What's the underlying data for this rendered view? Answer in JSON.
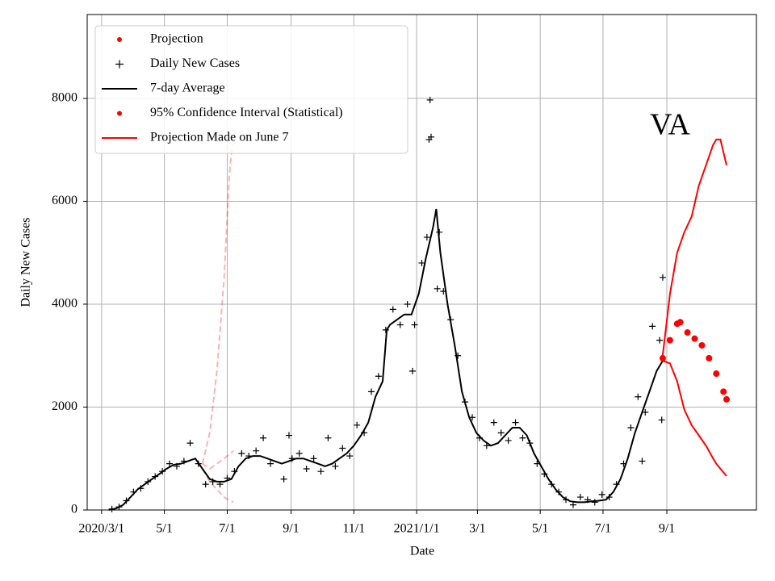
{
  "chart_data": {
    "type": "line",
    "xlabel": "Date",
    "ylabel": "Daily New Cases",
    "annotation": "VA",
    "grid": true,
    "legend": "upper left",
    "xlim": [
      "2020-02-16",
      "2021-11-27"
    ],
    "ylim": [
      0,
      9630
    ],
    "yticks": [
      0,
      2000,
      4000,
      6000,
      8000
    ],
    "xticks": [
      {
        "value": "2020-03-01",
        "label": "2020/3/1"
      },
      {
        "value": "2020-05-01",
        "label": "5/1"
      },
      {
        "value": "2020-07-01",
        "label": "7/1"
      },
      {
        "value": "2020-09-01",
        "label": "9/1"
      },
      {
        "value": "2020-11-01",
        "label": "11/1"
      },
      {
        "value": "2021-01-01",
        "label": "2021/1/1"
      },
      {
        "value": "2021-03-01",
        "label": "3/1"
      },
      {
        "value": "2021-05-01",
        "label": "5/1"
      },
      {
        "value": "2021-07-01",
        "label": "7/1"
      },
      {
        "value": "2021-09-01",
        "label": "9/1"
      }
    ],
    "series": [
      {
        "name": "Projection",
        "style": "dots",
        "color": "#ff0000",
        "x": [
          "2021-08-28",
          "2021-09-04",
          "2021-09-11",
          "2021-09-14",
          "2021-09-21",
          "2021-09-28",
          "2021-10-05",
          "2021-10-12",
          "2021-10-19",
          "2021-10-26",
          "2021-10-29"
        ],
        "values": [
          2950,
          3300,
          3620,
          3650,
          3450,
          3330,
          3200,
          2950,
          2650,
          2300,
          2150
        ]
      },
      {
        "name": "Daily New Cases",
        "style": "plus",
        "color": "#000000",
        "x": [
          "2020-03-11",
          "2020-03-18",
          "2020-03-25",
          "2020-04-01",
          "2020-04-08",
          "2020-04-15",
          "2020-04-22",
          "2020-04-29",
          "2020-05-06",
          "2020-05-13",
          "2020-05-20",
          "2020-05-26",
          "2020-06-03",
          "2020-06-10",
          "2020-06-17",
          "2020-06-24",
          "2020-07-01",
          "2020-07-08",
          "2020-07-15",
          "2020-07-22",
          "2020-07-29",
          "2020-08-05",
          "2020-08-12",
          "2020-08-25",
          "2020-08-30",
          "2020-09-02",
          "2020-09-09",
          "2020-09-16",
          "2020-09-23",
          "2020-09-30",
          "2020-10-07",
          "2020-10-14",
          "2020-10-21",
          "2020-10-28",
          "2020-11-04",
          "2020-11-11",
          "2020-11-18",
          "2020-11-25",
          "2020-12-02",
          "2020-12-09",
          "2020-12-16",
          "2020-12-23",
          "2020-12-28",
          "2020-12-30",
          "2021-01-06",
          "2021-01-11",
          "2021-01-13",
          "2021-01-14",
          "2021-01-15",
          "2021-01-21",
          "2021-01-23",
          "2021-01-27",
          "2021-02-03",
          "2021-02-10",
          "2021-02-17",
          "2021-02-24",
          "2021-03-03",
          "2021-03-10",
          "2021-03-17",
          "2021-03-24",
          "2021-03-31",
          "2021-04-07",
          "2021-04-14",
          "2021-04-21",
          "2021-04-28",
          "2021-05-05",
          "2021-05-12",
          "2021-05-19",
          "2021-05-26",
          "2021-06-02",
          "2021-06-09",
          "2021-06-16",
          "2021-06-23",
          "2021-06-30",
          "2021-07-07",
          "2021-07-14",
          "2021-07-21",
          "2021-07-28",
          "2021-08-04",
          "2021-08-08",
          "2021-08-11",
          "2021-08-18",
          "2021-08-25",
          "2021-08-27",
          "2021-08-28"
        ],
        "values": [
          20,
          60,
          180,
          350,
          420,
          550,
          650,
          750,
          900,
          850,
          950,
          1300,
          900,
          500,
          550,
          500,
          620,
          750,
          1100,
          1050,
          1150,
          1400,
          900,
          600,
          1450,
          1000,
          1100,
          800,
          1000,
          750,
          1400,
          850,
          1200,
          1050,
          1650,
          1500,
          2300,
          2600,
          3500,
          3900,
          3600,
          4000,
          2700,
          3600,
          4800,
          5300,
          7200,
          7970,
          7250,
          4300,
          5400,
          4250,
          3700,
          3000,
          2100,
          1800,
          1400,
          1250,
          1700,
          1500,
          1350,
          1700,
          1400,
          1300,
          900,
          700,
          500,
          350,
          200,
          100,
          250,
          200,
          150,
          300,
          250,
          500,
          900,
          1600,
          2200,
          950,
          1900,
          3570,
          3300,
          1750,
          4520
        ]
      },
      {
        "name": "7-day Average",
        "style": "line",
        "color": "#000000",
        "x": [
          "2020-03-08",
          "2020-03-15",
          "2020-03-22",
          "2020-03-29",
          "2020-04-05",
          "2020-04-12",
          "2020-04-19",
          "2020-04-26",
          "2020-05-03",
          "2020-05-10",
          "2020-05-17",
          "2020-05-24",
          "2020-05-31",
          "2020-06-07",
          "2020-06-14",
          "2020-06-21",
          "2020-06-28",
          "2020-07-05",
          "2020-07-12",
          "2020-07-19",
          "2020-07-26",
          "2020-08-02",
          "2020-08-09",
          "2020-08-16",
          "2020-08-23",
          "2020-08-30",
          "2020-09-06",
          "2020-09-13",
          "2020-09-20",
          "2020-09-27",
          "2020-10-04",
          "2020-10-11",
          "2020-10-18",
          "2020-10-25",
          "2020-11-01",
          "2020-11-08",
          "2020-11-15",
          "2020-11-22",
          "2020-11-29",
          "2020-12-03",
          "2020-12-06",
          "2020-12-13",
          "2020-12-20",
          "2020-12-27",
          "2021-01-03",
          "2021-01-10",
          "2021-01-17",
          "2021-01-20",
          "2021-01-24",
          "2021-01-31",
          "2021-02-07",
          "2021-02-14",
          "2021-02-21",
          "2021-02-28",
          "2021-03-07",
          "2021-03-14",
          "2021-03-21",
          "2021-03-28",
          "2021-04-04",
          "2021-04-11",
          "2021-04-18",
          "2021-04-25",
          "2021-05-02",
          "2021-05-09",
          "2021-05-16",
          "2021-05-23",
          "2021-05-30",
          "2021-06-06",
          "2021-06-13",
          "2021-06-20",
          "2021-06-27",
          "2021-07-04",
          "2021-07-11",
          "2021-07-18",
          "2021-07-25",
          "2021-08-01",
          "2021-08-08",
          "2021-08-15",
          "2021-08-22",
          "2021-08-28"
        ],
        "values": [
          0,
          30,
          100,
          250,
          400,
          500,
          600,
          700,
          800,
          880,
          900,
          950,
          1000,
          800,
          600,
          550,
          550,
          600,
          850,
          1000,
          1050,
          1050,
          1000,
          950,
          900,
          950,
          1000,
          1000,
          950,
          900,
          850,
          900,
          1000,
          1100,
          1250,
          1450,
          1700,
          2200,
          2500,
          3500,
          3600,
          3700,
          3800,
          3800,
          4200,
          4900,
          5500,
          5850,
          5000,
          4000,
          3200,
          2300,
          1800,
          1500,
          1350,
          1250,
          1300,
          1450,
          1600,
          1600,
          1450,
          1100,
          850,
          600,
          400,
          250,
          170,
          150,
          150,
          170,
          180,
          200,
          350,
          600,
          1000,
          1500,
          1900,
          2300,
          2700,
          2900
        ]
      },
      {
        "name": "95% Confidence Interval (Statistical)",
        "style": "band-lines",
        "color": "#ff0000",
        "x": [
          "2021-08-28",
          "2021-09-04",
          "2021-09-11",
          "2021-09-18",
          "2021-09-25",
          "2021-10-02",
          "2021-10-09",
          "2021-10-16",
          "2021-10-19",
          "2021-10-23",
          "2021-10-29"
        ],
        "upper": [
          3000,
          4200,
          5000,
          5400,
          5700,
          6300,
          6700,
          7100,
          7200,
          7200,
          6700
        ],
        "lower": [
          2900,
          2850,
          2500,
          1950,
          1650,
          1450,
          1250,
          1000,
          900,
          800,
          660
        ]
      },
      {
        "name": "Projection Made on June 7",
        "style": "dashed-band",
        "color": "#ff0000",
        "x": [
          "2020-06-07",
          "2020-06-14",
          "2020-06-21",
          "2020-06-28",
          "2020-07-03",
          "2020-07-07"
        ],
        "upper": [
          900,
          1500,
          2700,
          4500,
          6500,
          7300
        ],
        "values": [
          900,
          800,
          900,
          1000,
          1080,
          1150
        ],
        "lower": [
          800,
          550,
          400,
          250,
          190,
          150
        ]
      }
    ]
  }
}
